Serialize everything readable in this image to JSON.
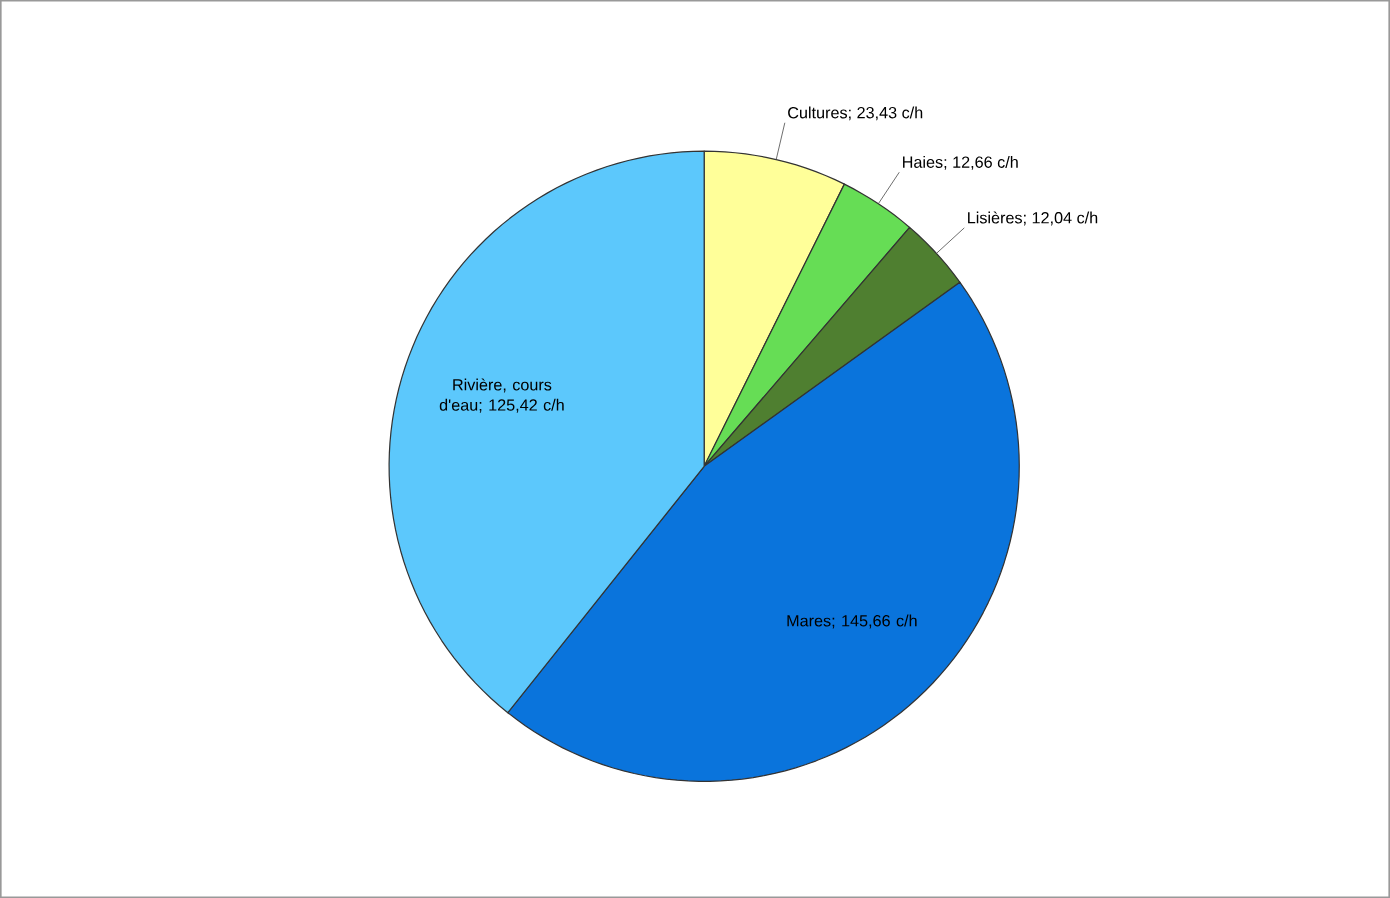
{
  "chart_data": {
    "type": "pie",
    "categories": [
      "Cultures; 23,43 c/h",
      "Haies; 12,66 c/h",
      "Lisières; 12,04 c/h",
      "Mares; 145,66 c/h",
      "Rivière, cours d'eau; 125,42 c/h"
    ],
    "values": [
      23.43,
      12.66,
      12.04,
      145.66,
      125.42
    ],
    "colors": [
      "#ffff99",
      "#66dd55",
      "#4f7f30",
      "#0a74dc",
      "#5cc8fc"
    ]
  }
}
